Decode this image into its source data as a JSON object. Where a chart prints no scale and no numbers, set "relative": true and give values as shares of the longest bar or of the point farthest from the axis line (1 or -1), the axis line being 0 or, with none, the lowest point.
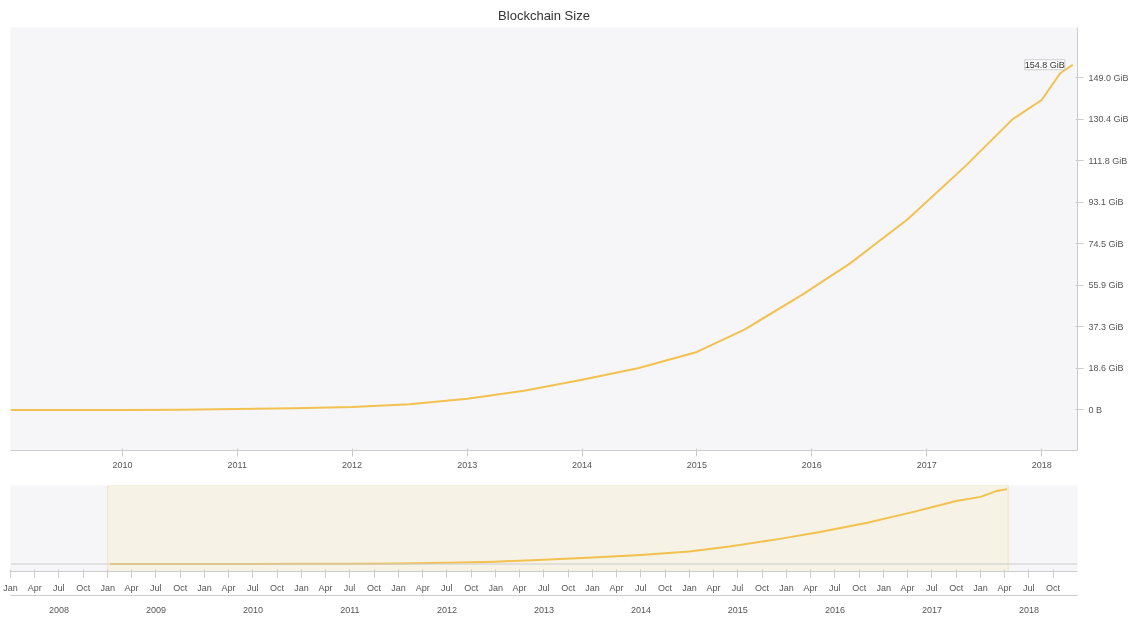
{
  "chart_data": [
    {
      "type": "line",
      "title": "Blockchain Size",
      "x": [
        "2009-01-10",
        "2009-07",
        "2010-01",
        "2010-07",
        "2011-01",
        "2011-07",
        "2012-01",
        "2012-07",
        "2013-01",
        "2013-07",
        "2014-01",
        "2014-07",
        "2015-01",
        "2015-06",
        "2015-12",
        "2016-05",
        "2016-11",
        "2017-05",
        "2017-10",
        "2018-01",
        "2018-03",
        "2018-04-10"
      ],
      "series": [
        {
          "color": "#f2c14e",
          "values": [
            0,
            0,
            0,
            0.1,
            0.4,
            0.8,
            1.3,
            2.5,
            5,
            8.6,
            13.5,
            18.8,
            26,
            36,
            51.6,
            65.6,
            85.5,
            109,
            130.4,
            139,
            151,
            154.8
          ]
        }
      ],
      "xlim": [
        "2009-01-10",
        "2018-04-25"
      ],
      "xticks": [
        {
          "value": "2010",
          "label": "2010"
        },
        {
          "value": "2011",
          "label": "2011"
        },
        {
          "value": "2012",
          "label": "2012"
        },
        {
          "value": "2013",
          "label": "2013"
        },
        {
          "value": "2014",
          "label": "2014"
        },
        {
          "value": "2015",
          "label": "2015"
        },
        {
          "value": "2016",
          "label": "2016"
        },
        {
          "value": "2017",
          "label": "2017"
        },
        {
          "value": "2018",
          "label": "2018"
        }
      ],
      "ylim": [
        -18.2,
        171.5
      ],
      "yticks": [
        {
          "value": 0,
          "label": "0 B"
        },
        {
          "value": 18.6,
          "label": "18.6 GiB"
        },
        {
          "value": 37.3,
          "label": "37.3 GiB"
        },
        {
          "value": 55.9,
          "label": "55.9 GiB"
        },
        {
          "value": 74.5,
          "label": "74.5 GiB"
        },
        {
          "value": 93.1,
          "label": "93.1 GiB"
        },
        {
          "value": 111.8,
          "label": "111.8 GiB"
        },
        {
          "value": 130.4,
          "label": "130.4 GiB"
        },
        {
          "value": 149.0,
          "label": "149.0 GiB"
        }
      ],
      "annotations": [
        {
          "text": "154.8 GiB",
          "x": "2018-04-10",
          "y": 154.8
        }
      ],
      "line_style": "solid"
    },
    {
      "type": "line",
      "relative": true,
      "x": [
        "2009-01-10",
        "2009-07",
        "2010-01",
        "2010-07",
        "2011-01",
        "2011-07",
        "2012-01",
        "2012-07",
        "2013-01",
        "2013-07",
        "2014-01",
        "2014-07",
        "2015-01",
        "2015-06",
        "2015-12",
        "2016-05",
        "2016-11",
        "2017-05",
        "2017-10",
        "2018-01",
        "2018-03",
        "2018-04-10"
      ],
      "series": [
        {
          "color": "#f2c14e",
          "values": [
            0,
            0,
            0,
            0.001,
            0.003,
            0.005,
            0.008,
            0.016,
            0.032,
            0.056,
            0.087,
            0.121,
            0.168,
            0.233,
            0.333,
            0.424,
            0.552,
            0.704,
            0.842,
            0.898,
            0.975,
            1
          ]
        }
      ],
      "xlim": [
        "2008-01-01",
        "2019-01-01"
      ],
      "x2lim": [
        "2008-01-01",
        "2019-01-01"
      ],
      "xticks": [
        {
          "value": "2008-01",
          "label": "Jan"
        },
        {
          "value": "2008-04",
          "label": "Apr"
        },
        {
          "value": "2008-07",
          "label": "Jul"
        },
        {
          "value": "2008-10",
          "label": "Oct"
        },
        {
          "value": "2009-01",
          "label": "Jan"
        },
        {
          "value": "2009-04",
          "label": "Apr"
        },
        {
          "value": "2009-07",
          "label": "Jul"
        },
        {
          "value": "2009-10",
          "label": "Oct"
        },
        {
          "value": "2010-01",
          "label": "Jan"
        },
        {
          "value": "2010-04",
          "label": "Apr"
        },
        {
          "value": "2010-07",
          "label": "Jul"
        },
        {
          "value": "2010-10",
          "label": "Oct"
        },
        {
          "value": "2011-01",
          "label": "Jan"
        },
        {
          "value": "2011-04",
          "label": "Apr"
        },
        {
          "value": "2011-07",
          "label": "Jul"
        },
        {
          "value": "2011-10",
          "label": "Oct"
        },
        {
          "value": "2012-01",
          "label": "Jan"
        },
        {
          "value": "2012-04",
          "label": "Apr"
        },
        {
          "value": "2012-07",
          "label": "Jul"
        },
        {
          "value": "2012-10",
          "label": "Oct"
        },
        {
          "value": "2013-01",
          "label": "Jan"
        },
        {
          "value": "2013-04",
          "label": "Apr"
        },
        {
          "value": "2013-07",
          "label": "Jul"
        },
        {
          "value": "2013-10",
          "label": "Oct"
        },
        {
          "value": "2014-01",
          "label": "Jan"
        },
        {
          "value": "2014-04",
          "label": "Apr"
        },
        {
          "value": "2014-07",
          "label": "Jul"
        },
        {
          "value": "2014-10",
          "label": "Oct"
        },
        {
          "value": "2015-01",
          "label": "Jan"
        },
        {
          "value": "2015-04",
          "label": "Apr"
        },
        {
          "value": "2015-07",
          "label": "Jul"
        },
        {
          "value": "2015-10",
          "label": "Oct"
        },
        {
          "value": "2016-01",
          "label": "Jan"
        },
        {
          "value": "2016-04",
          "label": "Apr"
        },
        {
          "value": "2016-07",
          "label": "Jul"
        },
        {
          "value": "2016-10",
          "label": "Oct"
        },
        {
          "value": "2017-01",
          "label": "Jan"
        },
        {
          "value": "2017-04",
          "label": "Apr"
        },
        {
          "value": "2017-07",
          "label": "Jul"
        },
        {
          "value": "2017-10",
          "label": "Oct"
        },
        {
          "value": "2018-01",
          "label": "Jan"
        },
        {
          "value": "2018-04",
          "label": "Apr"
        },
        {
          "value": "2018-07",
          "label": "Jul"
        },
        {
          "value": "2018-10",
          "label": "Oct"
        }
      ],
      "x2ticks": [
        {
          "value": "2008-07-02",
          "label": "2008"
        },
        {
          "value": "2009-07-02",
          "label": "2009"
        },
        {
          "value": "2010-07-02",
          "label": "2010"
        },
        {
          "value": "2011-07-02",
          "label": "2011"
        },
        {
          "value": "2012-07-02",
          "label": "2012"
        },
        {
          "value": "2013-07-02",
          "label": "2013"
        },
        {
          "value": "2014-07-02",
          "label": "2014"
        },
        {
          "value": "2015-07-02",
          "label": "2015"
        },
        {
          "value": "2016-07-02",
          "label": "2016"
        },
        {
          "value": "2017-07-02",
          "label": "2017"
        },
        {
          "value": "2018-07-02",
          "label": "2018"
        }
      ],
      "bands": [
        {
          "axis": "x",
          "from": "2009-01-01",
          "to": "2018-04-15",
          "color": "#f7f2e6"
        }
      ],
      "tick_labels": "x",
      "line_style": "solid"
    }
  ]
}
